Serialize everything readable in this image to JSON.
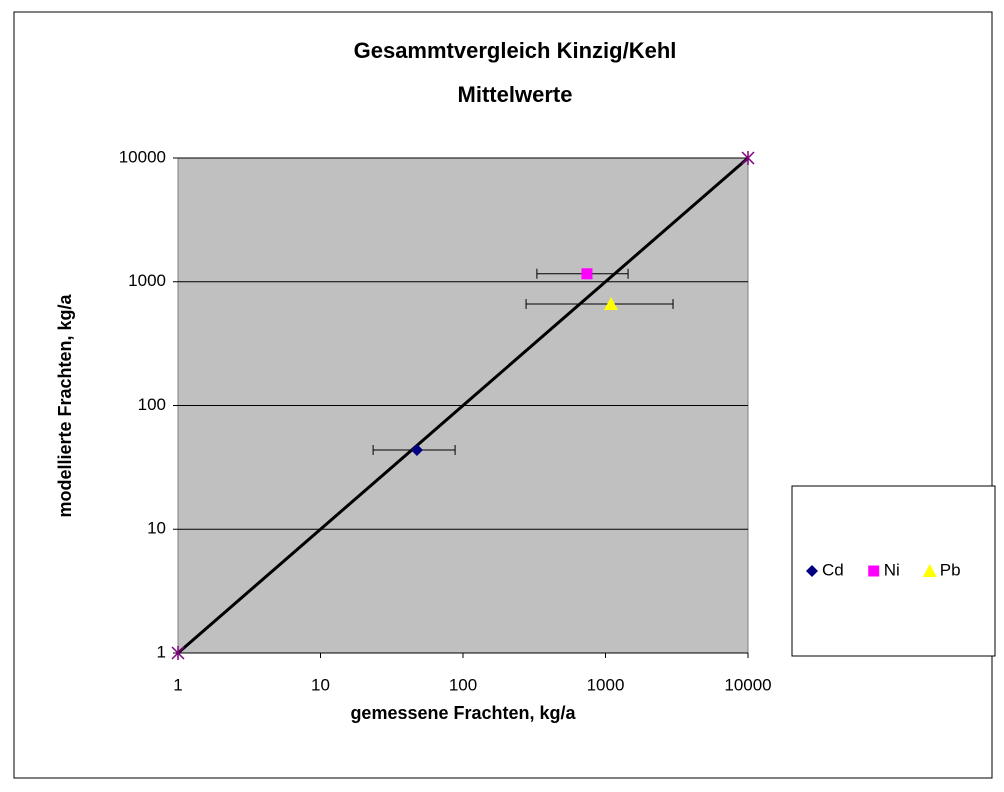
{
  "chart_data": {
    "type": "scatter",
    "title": "Gesammtvergleich Kinzig/Kehl",
    "subtitle": "Mittelwerte",
    "x_label": "gemessene Frachten, kg/a",
    "y_label": "modellierte Frachten, kg/a",
    "xscale": "log",
    "yscale": "log",
    "xlim": [
      1,
      10000
    ],
    "ylim": [
      1,
      10000
    ],
    "xticks": [
      1,
      10,
      100,
      1000,
      10000
    ],
    "yticks": [
      1,
      10,
      100,
      1000,
      10000
    ],
    "grid": true,
    "legend": "right",
    "background": "#c0c0c0",
    "series": [
      {
        "color": "#000000",
        "marker": "star",
        "marker_color": "#800080",
        "line": true,
        "x": [
          1,
          10000
        ],
        "values": [
          1,
          10000
        ]
      },
      {
        "name": "Cd",
        "color": "#000080",
        "marker": "diamond",
        "x": [
          47.5
        ],
        "values": [
          43.7
        ],
        "x_low": [
          23.4
        ],
        "x_high": [
          88
        ]
      },
      {
        "name": "Ni",
        "color": "#ff00ff",
        "marker": "square",
        "x": [
          741
        ],
        "values": [
          1160
        ],
        "x_low": [
          330
        ],
        "x_high": [
          1440
        ]
      },
      {
        "name": "Pb",
        "color": "#ffff00",
        "marker": "triangle",
        "x": [
          1093
        ],
        "values": [
          661
        ],
        "x_low": [
          277
        ],
        "x_high": [
          2977
        ]
      }
    ]
  }
}
